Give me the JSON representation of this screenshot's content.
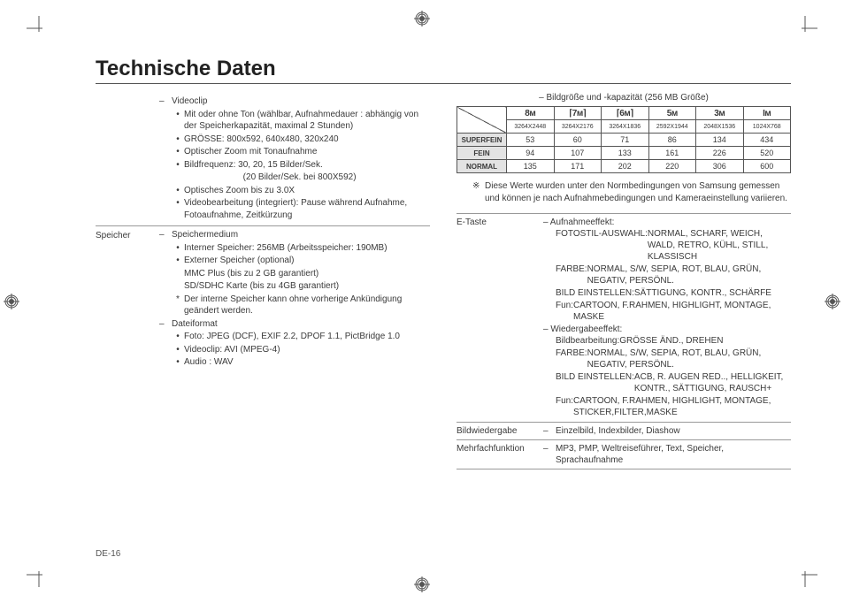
{
  "title": "Technische Daten",
  "page_number": "DE-16",
  "left_top_block": {
    "label": "",
    "items": [
      {
        "type": "dash",
        "text": "Videoclip",
        "lvl": 1
      },
      {
        "type": "bullet",
        "text": "Mit oder ohne Ton (wählbar, Aufnahmedauer : abhängig von der Speicherkapazität, maximal 2 Stunden)",
        "lvl": 2
      },
      {
        "type": "bullet",
        "text": "GRÖSSE: 800x592, 640x480, 320x240",
        "lvl": 2
      },
      {
        "type": "bullet",
        "text": "Optischer Zoom mit Tonaufnahme",
        "lvl": 2
      },
      {
        "type": "bullet",
        "text": "Bildfrequenz: 30, 20, 15 Bilder/Sek.",
        "lvl": 2
      },
      {
        "type": "plain",
        "text": "                        (20 Bilder/Sek. bei 800X592)",
        "lvl": 2
      },
      {
        "type": "bullet",
        "text": "Optisches Zoom bis zu 3.0X",
        "lvl": 2
      },
      {
        "type": "bullet",
        "text": "Videobearbeitung (integriert): Pause während Aufnahme, Fotoaufnahme, Zeitkürzung",
        "lvl": 2
      }
    ]
  },
  "left_mem_block": {
    "label": "Speicher",
    "items": [
      {
        "type": "dash",
        "text": "Speichermedium",
        "lvl": 1
      },
      {
        "type": "bullet",
        "text": "Interner Speicher: 256MB (Arbeitsspeicher: 190MB)",
        "lvl": 2
      },
      {
        "type": "bullet",
        "text": "Externer Speicher (optional)",
        "lvl": 2
      },
      {
        "type": "plain",
        "text": "MMC Plus (bis zu 2 GB garantiert)",
        "lvl": 2
      },
      {
        "type": "plain",
        "text": "SD/SDHC Karte (bis zu 4GB garantiert)",
        "lvl": 2
      },
      {
        "type": "star",
        "text": "Der interne Speicher kann ohne vorherige Ankündigung geändert werden.",
        "lvl": 2
      },
      {
        "type": "dash",
        "text": "Dateiformat",
        "lvl": 1
      },
      {
        "type": "bullet",
        "text": "Foto: JPEG (DCF), EXIF 2.2, DPOF 1.1, PictBridge 1.0",
        "lvl": 2
      },
      {
        "type": "bullet",
        "text": "Videoclip: AVI (MPEG-4)",
        "lvl": 2
      },
      {
        "type": "bullet",
        "text": "Audio : WAV",
        "lvl": 2
      }
    ]
  },
  "capacity_caption": "– Bildgröße und -kapazität (256 MB Größe)",
  "capacity_icons": [
    "8ᴍ",
    "⌈7ᴍ⌉",
    "⌈6ᴍ⌉",
    "5ᴍ",
    "3ᴍ",
    "Iᴍ"
  ],
  "capacity_res": [
    "3264X2448",
    "3264X2176",
    "3264X1836",
    "2592X1944",
    "2048X1536",
    "1024X768"
  ],
  "capacity_rows": [
    {
      "label": "SUPERFEIN",
      "vals": [
        "53",
        "60",
        "71",
        "86",
        "134",
        "434"
      ]
    },
    {
      "label": "FEIN",
      "vals": [
        "94",
        "107",
        "133",
        "161",
        "226",
        "520"
      ]
    },
    {
      "label": "NORMAL",
      "vals": [
        "135",
        "171",
        "202",
        "220",
        "306",
        "600"
      ]
    }
  ],
  "capacity_note": "Diese Werte wurden unter den Normbedingungen von Samsung gemessen und können je nach Aufnahmebedingungen und Kameraeinstellung variieren.",
  "etaste": {
    "label": "E-Taste",
    "aufnahme_label": "– Aufnahmeeffekt:",
    "aufnahme": [
      {
        "k": "FOTOSTIL-AUSWAHL:",
        "v": "NORMAL, SCHARF, WEICH, WALD, RETRO, KÜHL, STILL, KLASSISCH"
      },
      {
        "k": "FARBE:",
        "v": "NORMAL, S/W, SEPIA, ROT, BLAU, GRÜN, NEGATIV, PERSÖNL."
      },
      {
        "k": "BILD EINSTELLEN:",
        "v": "SÄTTIGUNG, KONTR., SCHÄRFE"
      },
      {
        "k": "Fun:",
        "v": "CARTOON, F.RAHMEN, HIGHLIGHT, MONTAGE, MASKE"
      }
    ],
    "wieder_label": "– Wiedergabeeffekt:",
    "wieder": [
      {
        "k": "Bildbearbeitung:",
        "v": "GRÖSSE ÄND., DREHEN"
      },
      {
        "k": "FARBE:",
        "v": "NORMAL, S/W, SEPIA, ROT, BLAU, GRÜN, NEGATIV, PERSÖNL."
      },
      {
        "k": "BILD EINSTELLEN:",
        "v": "ACB, R. AUGEN RED.., HELLIGKEIT, KONTR., SÄTTIGUNG, RAUSCH+"
      },
      {
        "k": "Fun:",
        "v": "CARTOON, F.RAHMEN, HIGHLIGHT, MONTAGE, STICKER,FILTER,MASKE"
      }
    ]
  },
  "bildwiedergabe": {
    "label": "Bildwiedergabe",
    "text": "Einzelbild, Indexbilder, Diashow"
  },
  "mehrfach": {
    "label": "Mehrfachfunktion",
    "text": "MP3, PMP, Weltreiseführer, Text, Speicher, Sprachaufnahme"
  }
}
